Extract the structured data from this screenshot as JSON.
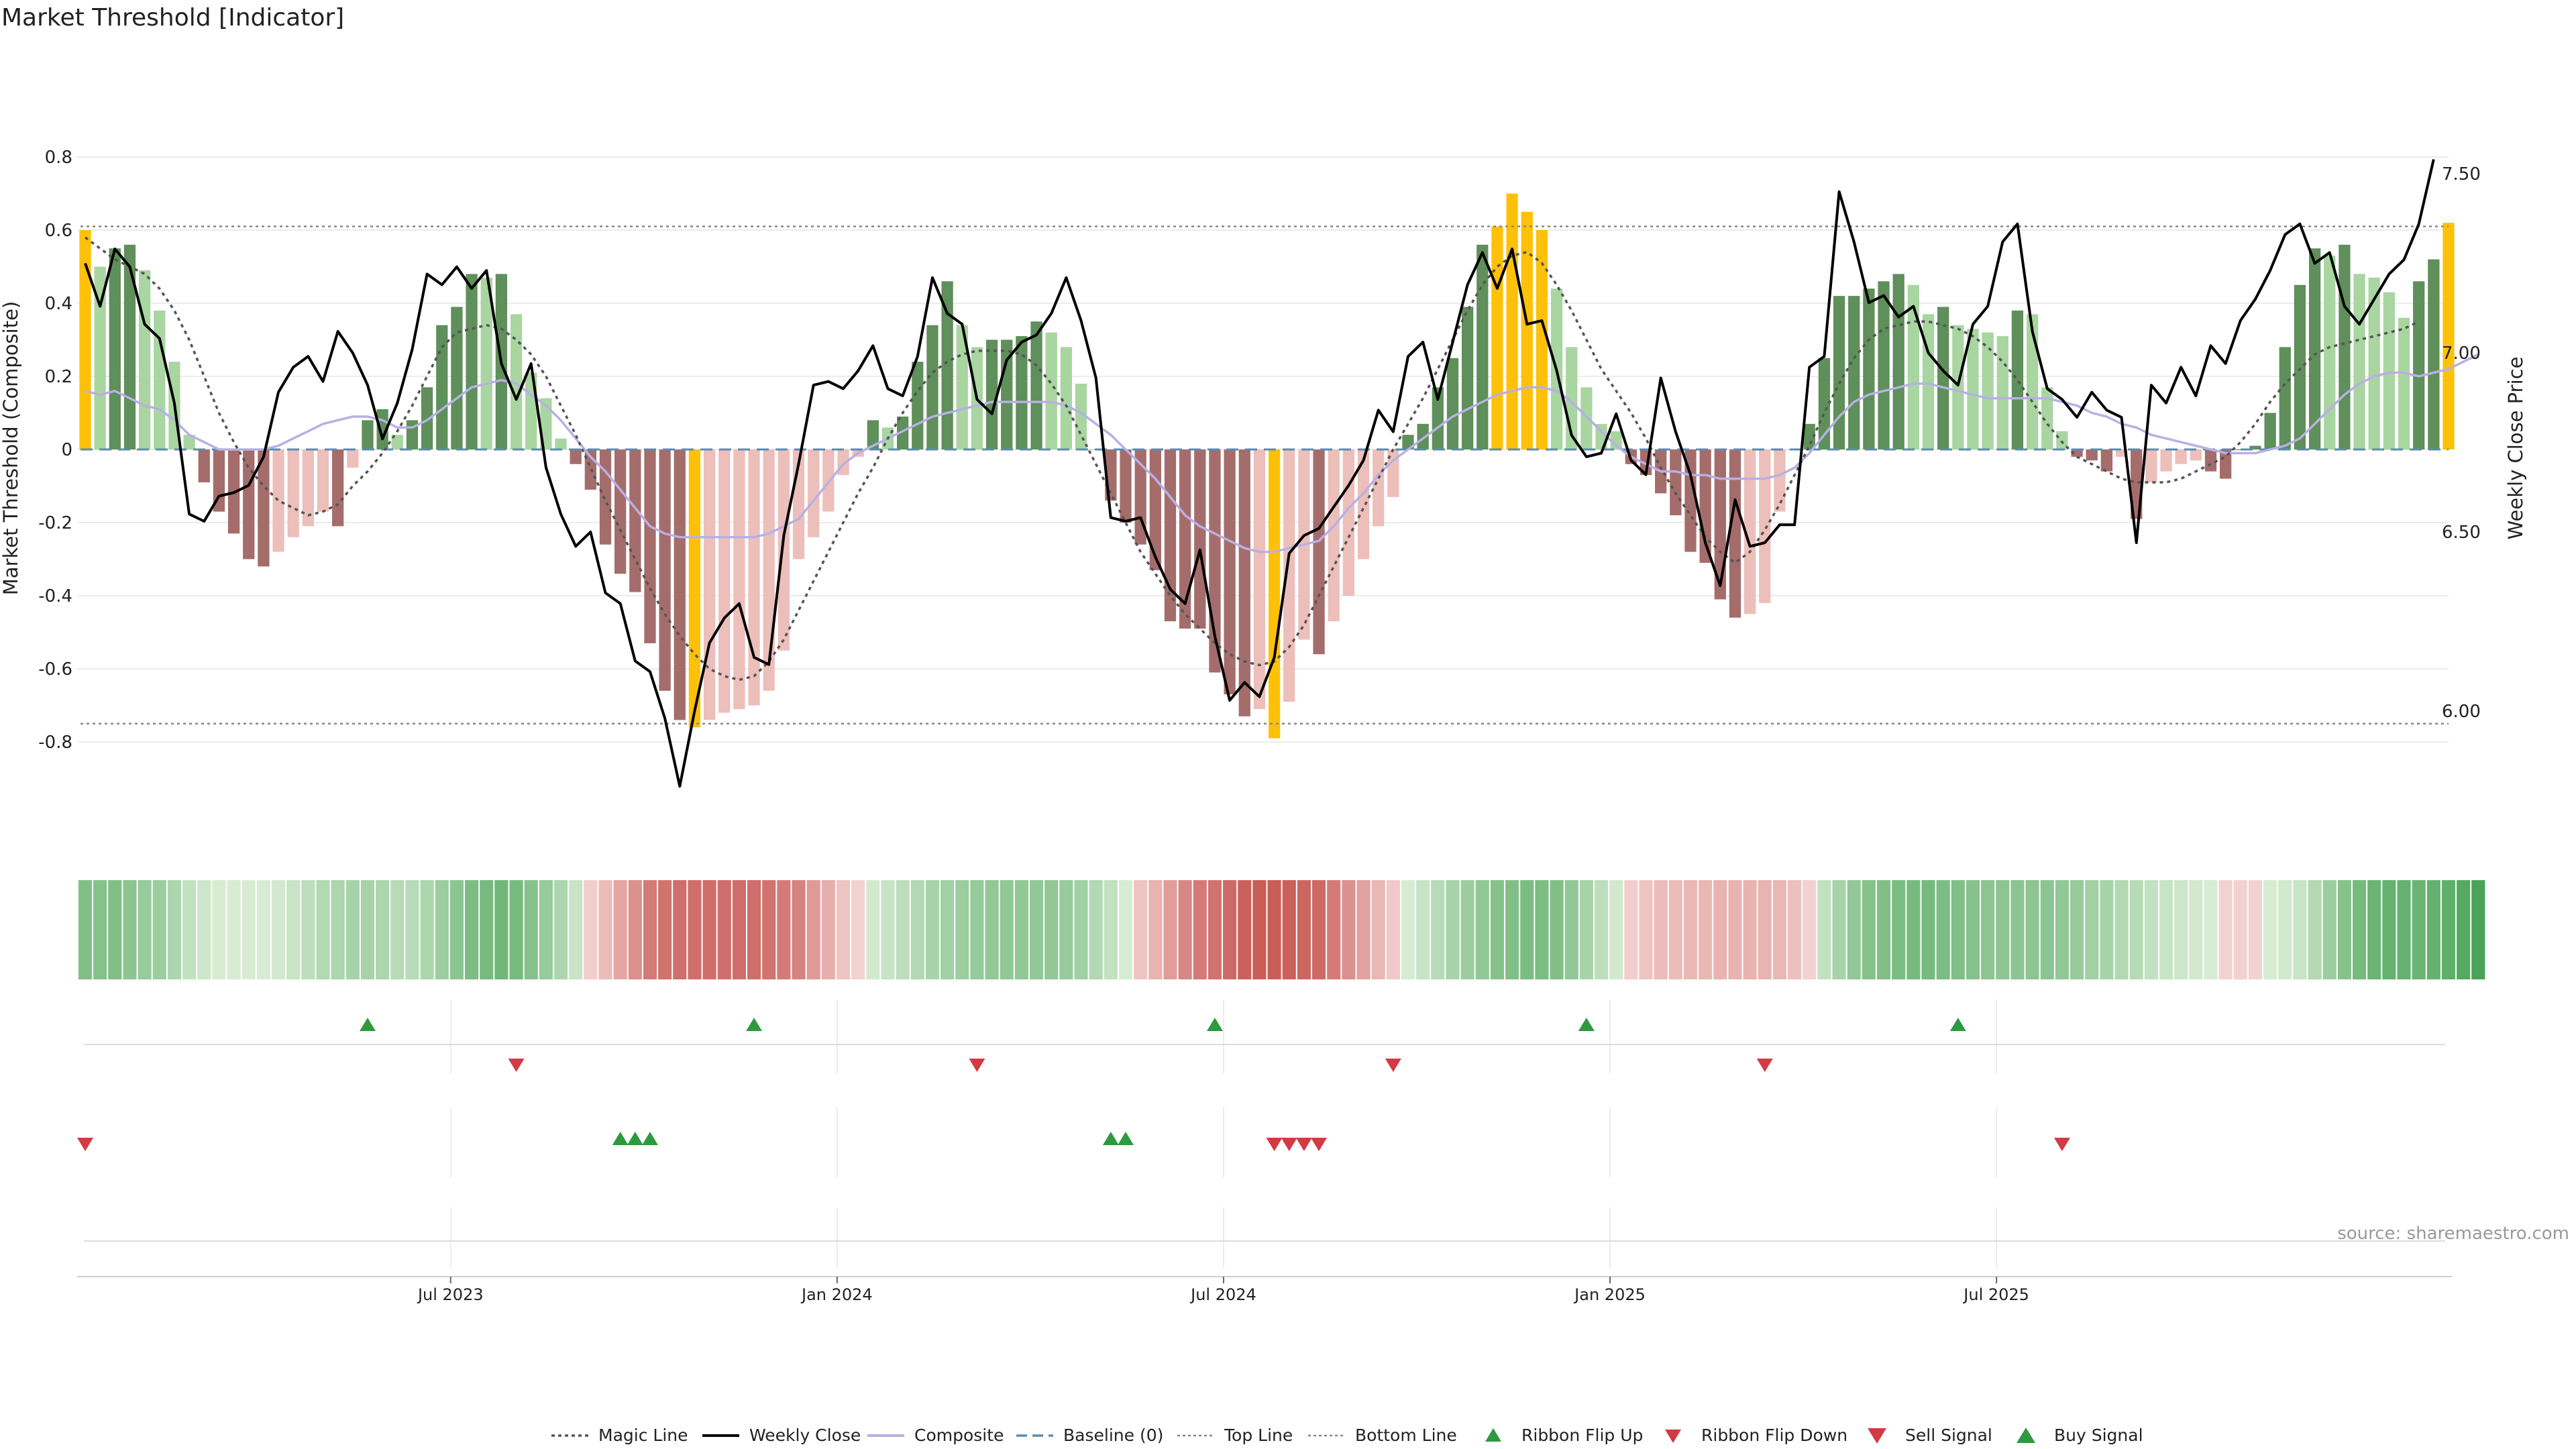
{
  "chart_data": {
    "type": "bar",
    "title": "Market Threshold [Indicator]",
    "ylabel": "Market Threshold (Composite)",
    "y2label": "Weekly Close Price",
    "source": "source: sharemaestro.com",
    "ylim": [
      -0.85,
      0.8
    ],
    "y2lim": [
      5.78,
      7.75
    ],
    "yticks": [
      "0.8",
      "0.6",
      "0.4",
      "0.2",
      "0",
      "-0.2",
      "-0.4",
      "-0.6",
      "-0.8"
    ],
    "y2ticks": [
      "7.50",
      "7.00",
      "6.50",
      "6.00"
    ],
    "xticks": [
      "Jul 2023",
      "Jan 2024",
      "Jul 2024",
      "Jan 2025",
      "Jul 2025"
    ],
    "top_line": 0.61,
    "bottom_line": -0.75,
    "baseline": 0,
    "start_week": "2023-01-15",
    "composite_bars": [
      0.6,
      0.5,
      0.55,
      0.56,
      0.49,
      0.38,
      0.24,
      0.04,
      -0.09,
      -0.17,
      -0.23,
      -0.3,
      -0.32,
      -0.28,
      -0.24,
      -0.21,
      -0.17,
      -0.21,
      -0.05,
      0.08,
      0.11,
      0.04,
      0.08,
      0.17,
      0.34,
      0.39,
      0.48,
      0.47,
      0.48,
      0.37,
      0.21,
      0.14,
      0.03,
      -0.04,
      -0.11,
      -0.26,
      -0.34,
      -0.39,
      -0.53,
      -0.66,
      -0.74,
      -0.76,
      -0.74,
      -0.72,
      -0.71,
      -0.7,
      -0.66,
      -0.55,
      -0.3,
      -0.24,
      -0.17,
      -0.07,
      -0.02,
      0.08,
      0.06,
      0.09,
      0.24,
      0.34,
      0.46,
      0.34,
      0.28,
      0.3,
      0.3,
      0.31,
      0.35,
      0.32,
      0.28,
      0.18,
      0.0,
      -0.14,
      -0.2,
      -0.26,
      -0.33,
      -0.47,
      -0.49,
      -0.49,
      -0.61,
      -0.67,
      -0.73,
      -0.71,
      -0.79,
      -0.69,
      -0.52,
      -0.56,
      -0.47,
      -0.4,
      -0.3,
      -0.21,
      -0.13,
      0.04,
      0.07,
      0.17,
      0.25,
      0.39,
      0.56,
      0.61,
      0.7,
      0.65,
      0.6,
      0.44,
      0.28,
      0.17,
      0.07,
      0.05,
      -0.04,
      -0.07,
      -0.12,
      -0.18,
      -0.28,
      -0.31,
      -0.41,
      -0.46,
      -0.45,
      -0.42,
      -0.17,
      0.0,
      0.07,
      0.25,
      0.42,
      0.42,
      0.44,
      0.46,
      0.48,
      0.45,
      0.37,
      0.39,
      0.34,
      0.33,
      0.32,
      0.31,
      0.38,
      0.37,
      0.17,
      0.05,
      -0.02,
      -0.03,
      -0.06,
      -0.02,
      -0.19,
      -0.09,
      -0.06,
      -0.04,
      -0.03,
      -0.06,
      -0.08,
      0.0,
      0.01,
      0.1,
      0.28,
      0.45,
      0.55,
      0.53,
      0.56,
      0.48,
      0.47,
      0.43,
      0.36,
      0.46,
      0.52,
      0.62
    ],
    "weekly_close": [
      7.25,
      7.13,
      7.29,
      7.24,
      7.08,
      7.04,
      6.86,
      6.55,
      6.53,
      6.6,
      6.61,
      6.63,
      6.71,
      6.89,
      6.96,
      6.99,
      6.92,
      7.06,
      7.0,
      6.91,
      6.76,
      6.86,
      7.01,
      7.22,
      7.19,
      7.24,
      7.18,
      7.23,
      6.97,
      6.87,
      6.97,
      6.68,
      6.55,
      6.46,
      6.5,
      6.33,
      6.3,
      6.14,
      6.11,
      5.98,
      5.79,
      6.0,
      6.19,
      6.26,
      6.3,
      6.15,
      6.13,
      6.49,
      6.69,
      6.91,
      6.92,
      6.9,
      6.95,
      7.02,
      6.9,
      6.88,
      6.99,
      7.21,
      7.11,
      7.08,
      6.87,
      6.83,
      6.98,
      7.03,
      7.05,
      7.11,
      7.21,
      7.09,
      6.93,
      6.54,
      6.53,
      6.54,
      6.43,
      6.34,
      6.3,
      6.45,
      6.21,
      6.03,
      6.08,
      6.04,
      6.15,
      6.44,
      6.49,
      6.51,
      6.57,
      6.63,
      6.7,
      6.84,
      6.78,
      6.99,
      7.03,
      6.87,
      7.03,
      7.19,
      7.28,
      7.18,
      7.29,
      7.08,
      7.09,
      6.95,
      6.77,
      6.71,
      6.72,
      6.83,
      6.7,
      6.66,
      6.93,
      6.78,
      6.66,
      6.47,
      6.35,
      6.59,
      6.46,
      6.47,
      6.52,
      6.52,
      6.96,
      6.99,
      7.45,
      7.31,
      7.14,
      7.16,
      7.1,
      7.13,
      7.0,
      6.95,
      6.91,
      7.08,
      7.13,
      7.31,
      7.36,
      7.06,
      6.9,
      6.87,
      6.82,
      6.89,
      6.84,
      6.82,
      6.47,
      6.91,
      6.86,
      6.96,
      6.88,
      7.02,
      6.97,
      7.09,
      7.15,
      7.23,
      7.33,
      7.36,
      7.25,
      7.28,
      7.13,
      7.08,
      7.15,
      7.22,
      7.26,
      7.36,
      7.54
    ],
    "composite_line": [
      0.16,
      0.15,
      0.16,
      0.14,
      0.12,
      0.11,
      0.08,
      0.04,
      0.02,
      0.0,
      0.0,
      0.0,
      0.0,
      0.01,
      0.03,
      0.05,
      0.07,
      0.08,
      0.09,
      0.09,
      0.08,
      0.06,
      0.06,
      0.08,
      0.11,
      0.14,
      0.17,
      0.18,
      0.19,
      0.18,
      0.15,
      0.12,
      0.08,
      0.03,
      -0.02,
      -0.06,
      -0.11,
      -0.16,
      -0.21,
      -0.23,
      -0.24,
      -0.24,
      -0.24,
      -0.24,
      -0.24,
      -0.24,
      -0.23,
      -0.21,
      -0.19,
      -0.14,
      -0.09,
      -0.04,
      -0.01,
      0.01,
      0.03,
      0.05,
      0.07,
      0.09,
      0.1,
      0.11,
      0.12,
      0.13,
      0.13,
      0.13,
      0.13,
      0.13,
      0.12,
      0.1,
      0.07,
      0.04,
      0.0,
      -0.04,
      -0.08,
      -0.13,
      -0.18,
      -0.21,
      -0.23,
      -0.25,
      -0.27,
      -0.28,
      -0.28,
      -0.27,
      -0.26,
      -0.25,
      -0.21,
      -0.16,
      -0.12,
      -0.07,
      -0.03,
      0.0,
      0.03,
      0.06,
      0.09,
      0.11,
      0.13,
      0.15,
      0.16,
      0.17,
      0.17,
      0.16,
      0.13,
      0.09,
      0.05,
      0.01,
      -0.02,
      -0.04,
      -0.06,
      -0.06,
      -0.07,
      -0.07,
      -0.08,
      -0.08,
      -0.08,
      -0.08,
      -0.07,
      -0.05,
      -0.01,
      0.04,
      0.09,
      0.13,
      0.15,
      0.16,
      0.17,
      0.18,
      0.18,
      0.17,
      0.16,
      0.15,
      0.14,
      0.14,
      0.14,
      0.14,
      0.14,
      0.13,
      0.12,
      0.1,
      0.09,
      0.07,
      0.06,
      0.04,
      0.03,
      0.02,
      0.01,
      0.0,
      -0.01,
      -0.01,
      -0.01,
      0.0,
      0.01,
      0.03,
      0.07,
      0.11,
      0.15,
      0.18,
      0.2,
      0.21,
      0.21,
      0.2,
      0.21,
      0.22,
      0.24,
      0.26
    ],
    "magic_line": [
      0.58,
      0.55,
      0.52,
      0.5,
      0.48,
      0.44,
      0.38,
      0.3,
      0.2,
      0.1,
      0.02,
      -0.05,
      -0.1,
      -0.14,
      -0.16,
      -0.18,
      -0.17,
      -0.15,
      -0.1,
      -0.06,
      -0.01,
      0.05,
      0.12,
      0.2,
      0.28,
      0.32,
      0.33,
      0.34,
      0.33,
      0.3,
      0.26,
      0.2,
      0.12,
      0.04,
      -0.05,
      -0.14,
      -0.22,
      -0.3,
      -0.38,
      -0.45,
      -0.51,
      -0.56,
      -0.6,
      -0.62,
      -0.63,
      -0.62,
      -0.58,
      -0.52,
      -0.44,
      -0.36,
      -0.28,
      -0.2,
      -0.12,
      -0.05,
      0.03,
      0.1,
      0.16,
      0.21,
      0.24,
      0.26,
      0.27,
      0.27,
      0.27,
      0.26,
      0.23,
      0.18,
      0.12,
      0.04,
      -0.04,
      -0.12,
      -0.2,
      -0.28,
      -0.34,
      -0.4,
      -0.45,
      -0.49,
      -0.53,
      -0.56,
      -0.58,
      -0.59,
      -0.58,
      -0.54,
      -0.48,
      -0.4,
      -0.32,
      -0.24,
      -0.16,
      -0.08,
      0.0,
      0.07,
      0.14,
      0.22,
      0.3,
      0.38,
      0.45,
      0.5,
      0.53,
      0.54,
      0.51,
      0.45,
      0.38,
      0.3,
      0.22,
      0.16,
      0.1,
      0.03,
      -0.05,
      -0.12,
      -0.18,
      -0.24,
      -0.28,
      -0.31,
      -0.28,
      -0.22,
      -0.15,
      -0.07,
      0.01,
      0.1,
      0.18,
      0.25,
      0.3,
      0.33,
      0.34,
      0.35,
      0.35,
      0.34,
      0.33,
      0.31,
      0.28,
      0.24,
      0.19,
      0.13,
      0.07,
      0.02,
      -0.02,
      -0.04,
      -0.06,
      -0.08,
      -0.09,
      -0.09,
      -0.09,
      -0.08,
      -0.06,
      -0.04,
      -0.02,
      0.02,
      0.07,
      0.13,
      0.18,
      0.22,
      0.26,
      0.28,
      0.29,
      0.3,
      0.31,
      0.32,
      0.33,
      0.35
    ],
    "ribbon_flip_up": [
      19,
      45,
      76,
      101,
      126
    ],
    "ribbon_flip_down": [
      29,
      60,
      88,
      113
    ],
    "buy_signal": [
      36,
      37,
      38,
      69,
      70
    ],
    "sell_signal": [
      0,
      80,
      81,
      82,
      83,
      133
    ],
    "legend": [
      "Magic Line",
      "Weekly Close",
      "Composite",
      "Baseline (0)",
      "Top Line",
      "Bottom Line",
      "Ribbon Flip Up",
      "Ribbon Flip Down",
      "Sell Signal",
      "Buy Signal"
    ],
    "colors": {
      "bar_extreme": "#ffc107",
      "bar_pos_strong": "#5f8f5a",
      "bar_pos_weak": "#a9d5a1",
      "bar_neg_strong": "#a46d6b",
      "bar_neg_weak": "#ecbfbb",
      "close": "#000000",
      "composite": "#b8b0e4",
      "magic": "#555555",
      "baseline": "#5b8bb0",
      "up": "#2e9a3f",
      "down": "#d23a44",
      "text": "#222222",
      "grid": "#ececec"
    }
  }
}
